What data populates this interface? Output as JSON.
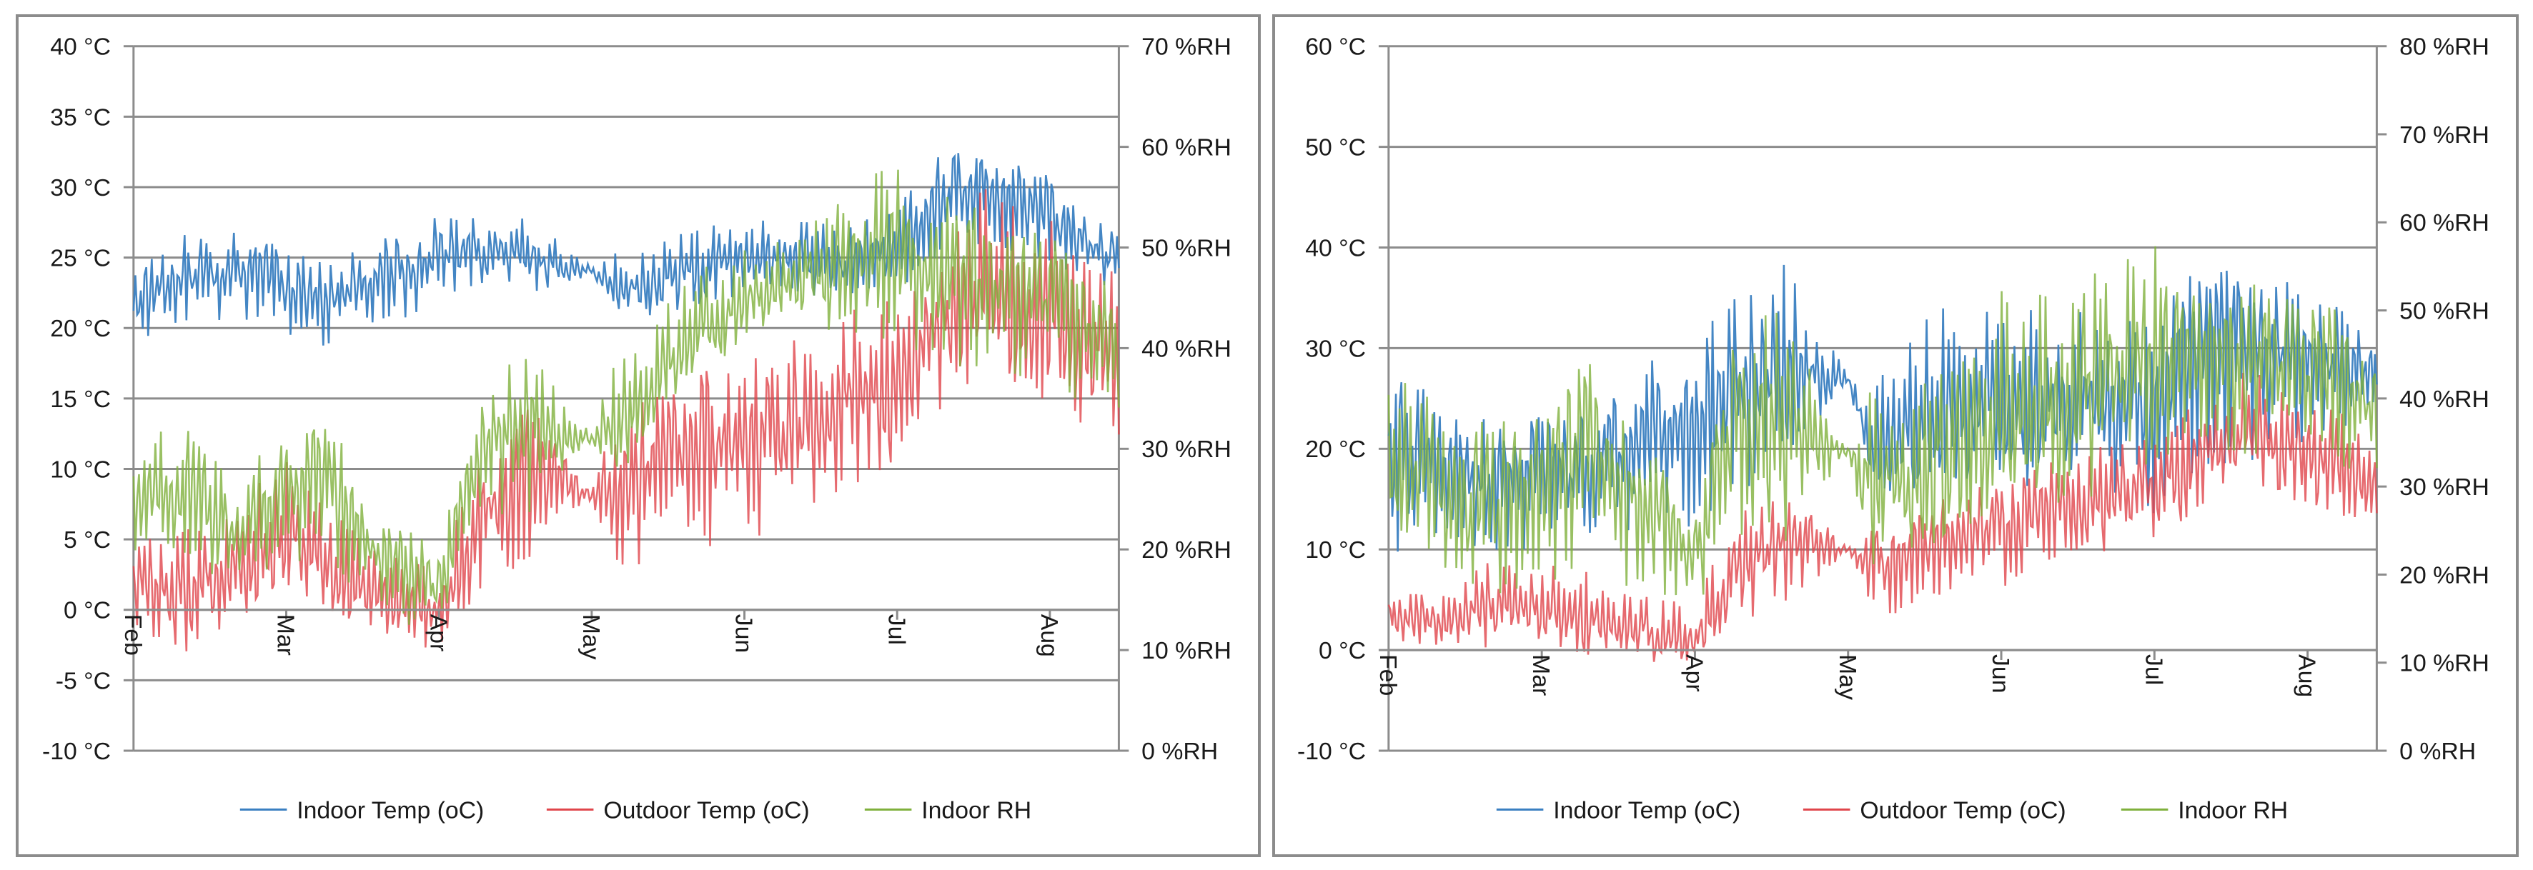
{
  "colors": {
    "indoor_temp": "#3a7fc1",
    "outdoor_temp": "#e0454b",
    "indoor_rh": "#7fb03c",
    "grid": "#8c8c8c",
    "axis": "#8c8c8c"
  },
  "chart_data": [
    {
      "type": "line",
      "title": "",
      "xlabel": "",
      "ylabel": "",
      "y_left": {
        "ylim": [
          -10,
          40
        ],
        "ticks": [
          -10,
          -5,
          0,
          5,
          10,
          15,
          20,
          25,
          30,
          35,
          40
        ],
        "tick_labels": [
          "-10 °C",
          "-5 °C",
          "0 °C",
          "5 °C",
          "10 °C",
          "15 °C",
          "20 °C",
          "25 °C",
          "30 °C",
          "35 °C",
          "40 °C"
        ]
      },
      "y_right": {
        "ylim": [
          0,
          70
        ],
        "ticks": [
          0,
          10,
          20,
          30,
          40,
          50,
          60,
          70
        ],
        "tick_labels": [
          "0 %RH",
          "10 %RH",
          "20 %RH",
          "30 %RH",
          "40 %RH",
          "50 %RH",
          "60 %RH",
          "70 %RH"
        ]
      },
      "x_axis_value": 0,
      "x_range_days": [
        0,
        200
      ],
      "month_ticks": [
        {
          "label": "Feb",
          "day": 0
        },
        {
          "label": "Mar",
          "day": 31
        },
        {
          "label": "Apr",
          "day": 62
        },
        {
          "label": "May",
          "day": 93
        },
        {
          "label": "Jun",
          "day": 124
        },
        {
          "label": "Jul",
          "day": 155
        },
        {
          "label": "Aug",
          "day": 186
        }
      ],
      "legend": [
        "Indoor Temp (oC)",
        "Outdoor Temp (oC)",
        "Indoor RH"
      ],
      "legend_position": "bottom",
      "series": [
        {
          "name": "Indoor Temp (oC)",
          "axis": "left",
          "color_key": "indoor_temp",
          "x": [
            0,
            10,
            20,
            31,
            40,
            50,
            62,
            70,
            80,
            93,
            98,
            105,
            112,
            124,
            135,
            145,
            155,
            163,
            170,
            178,
            186,
            192,
            200
          ],
          "mean": [
            22,
            23.5,
            24,
            23,
            22,
            23.5,
            25,
            25.5,
            25,
            24,
            23,
            23,
            24,
            25,
            25,
            24.5,
            26,
            29,
            30,
            29,
            28,
            26,
            25
          ],
          "amp": [
            3,
            3,
            3,
            3,
            3,
            3,
            3,
            2.5,
            2.5,
            0.3,
            2,
            2.5,
            3,
            3,
            2.5,
            2.5,
            3,
            3.5,
            3.5,
            3,
            3,
            2.5,
            2
          ]
        },
        {
          "name": "Outdoor Temp (oC)",
          "axis": "left",
          "color_key": "outdoor_temp",
          "x": [
            0,
            10,
            20,
            31,
            40,
            50,
            62,
            70,
            80,
            93,
            98,
            105,
            112,
            124,
            135,
            145,
            155,
            163,
            170,
            178,
            186,
            192,
            200
          ],
          "mean": [
            2,
            1,
            3,
            5,
            3,
            1,
            0,
            6,
            10,
            8,
            9,
            10,
            11,
            12,
            13,
            15,
            16,
            20,
            22,
            21,
            21,
            19,
            18
          ],
          "amp": [
            3,
            4,
            4,
            5,
            4,
            3,
            3,
            5,
            6,
            0.3,
            6,
            6,
            6,
            6,
            6,
            6,
            6,
            7,
            7,
            7,
            7,
            6,
            6
          ]
        },
        {
          "name": "Indoor RH",
          "axis": "right",
          "color_key": "indoor_rh",
          "x": [
            0,
            10,
            20,
            31,
            40,
            50,
            62,
            70,
            80,
            93,
            98,
            105,
            112,
            124,
            135,
            145,
            155,
            163,
            170,
            178,
            186,
            192,
            200
          ],
          "mean": [
            25,
            26,
            22,
            26,
            27,
            19,
            16,
            30,
            32,
            31,
            33,
            36,
            40,
            45,
            47,
            49,
            50,
            48,
            47,
            45,
            45,
            43,
            40
          ],
          "amp": [
            5,
            6,
            5,
            6,
            7,
            5,
            4,
            6,
            8,
            0.3,
            6,
            6,
            6,
            4,
            5,
            7,
            8,
            8,
            8,
            8,
            8,
            7,
            6
          ]
        }
      ]
    },
    {
      "type": "line",
      "title": "",
      "xlabel": "",
      "ylabel": "",
      "y_left": {
        "ylim": [
          -10,
          60
        ],
        "ticks": [
          -10,
          0,
          10,
          20,
          30,
          40,
          50,
          60
        ],
        "tick_labels": [
          "-10 °C",
          "0 °C",
          "10 °C",
          "20 °C",
          "30 °C",
          "40 °C",
          "50 °C",
          "60 °C"
        ]
      },
      "y_right": {
        "ylim": [
          0,
          80
        ],
        "ticks": [
          0,
          10,
          20,
          30,
          40,
          50,
          60,
          70,
          80
        ],
        "tick_labels": [
          "0 %RH",
          "10 %RH",
          "20 %RH",
          "30 %RH",
          "40 %RH",
          "50 %RH",
          "60 %RH",
          "70 %RH",
          "80 %RH"
        ]
      },
      "x_axis_value": 0,
      "x_range_days": [
        0,
        200
      ],
      "month_ticks": [
        {
          "label": "Feb",
          "day": 0
        },
        {
          "label": "Mar",
          "day": 31
        },
        {
          "label": "Apr",
          "day": 62
        },
        {
          "label": "May",
          "day": 93
        },
        {
          "label": "Jun",
          "day": 124
        },
        {
          "label": "Jul",
          "day": 155
        },
        {
          "label": "Aug",
          "day": 186
        }
      ],
      "legend": [
        "Indoor Temp (oC)",
        "Outdoor Temp (oC)",
        "Indoor RH"
      ],
      "legend_position": "bottom",
      "series": [
        {
          "name": "Indoor Temp (oC)",
          "axis": "left",
          "color_key": "indoor_temp",
          "x": [
            0,
            10,
            20,
            31,
            40,
            50,
            62,
            70,
            80,
            93,
            98,
            105,
            112,
            124,
            135,
            145,
            155,
            163,
            170,
            178,
            186,
            192,
            200
          ],
          "mean": [
            20,
            18,
            17,
            18,
            18,
            20,
            22,
            25,
            27,
            27,
            20,
            22,
            24,
            24,
            25,
            25,
            25,
            29,
            30,
            30,
            29,
            28,
            27
          ],
          "amp": [
            10,
            6,
            6,
            7,
            6,
            8,
            9,
            9,
            10,
            0.3,
            5,
            8,
            9,
            9,
            8,
            8,
            10,
            10,
            10,
            9,
            7,
            6,
            5
          ]
        },
        {
          "name": "Outdoor Temp (oC)",
          "axis": "left",
          "color_key": "outdoor_temp",
          "x": [
            0,
            10,
            20,
            31,
            40,
            50,
            62,
            70,
            80,
            93,
            98,
            105,
            112,
            124,
            135,
            145,
            155,
            163,
            170,
            178,
            186,
            192,
            200
          ],
          "mean": [
            3,
            3,
            4,
            4,
            3,
            2,
            1,
            8,
            11,
            10,
            9,
            9,
            11,
            12,
            14,
            15,
            16,
            19,
            21,
            21,
            20,
            18,
            17
          ],
          "amp": [
            2,
            3,
            4,
            4,
            4,
            3,
            3,
            5,
            6,
            0.3,
            4,
            5,
            5,
            5,
            5,
            5,
            5,
            6,
            6,
            6,
            6,
            5,
            5
          ]
        },
        {
          "name": "Indoor RH",
          "axis": "right",
          "color_key": "indoor_rh",
          "x": [
            0,
            10,
            20,
            31,
            40,
            50,
            62,
            70,
            80,
            93,
            98,
            105,
            112,
            124,
            135,
            145,
            155,
            163,
            170,
            178,
            186,
            192,
            200
          ],
          "mean": [
            32,
            30,
            27,
            30,
            35,
            30,
            22,
            38,
            36,
            34,
            30,
            30,
            34,
            38,
            40,
            42,
            45,
            46,
            45,
            44,
            43,
            42,
            38
          ],
          "amp": [
            10,
            10,
            10,
            10,
            12,
            10,
            8,
            12,
            12,
            0.3,
            10,
            10,
            12,
            12,
            12,
            12,
            12,
            10,
            10,
            10,
            10,
            9,
            8
          ]
        }
      ]
    }
  ]
}
